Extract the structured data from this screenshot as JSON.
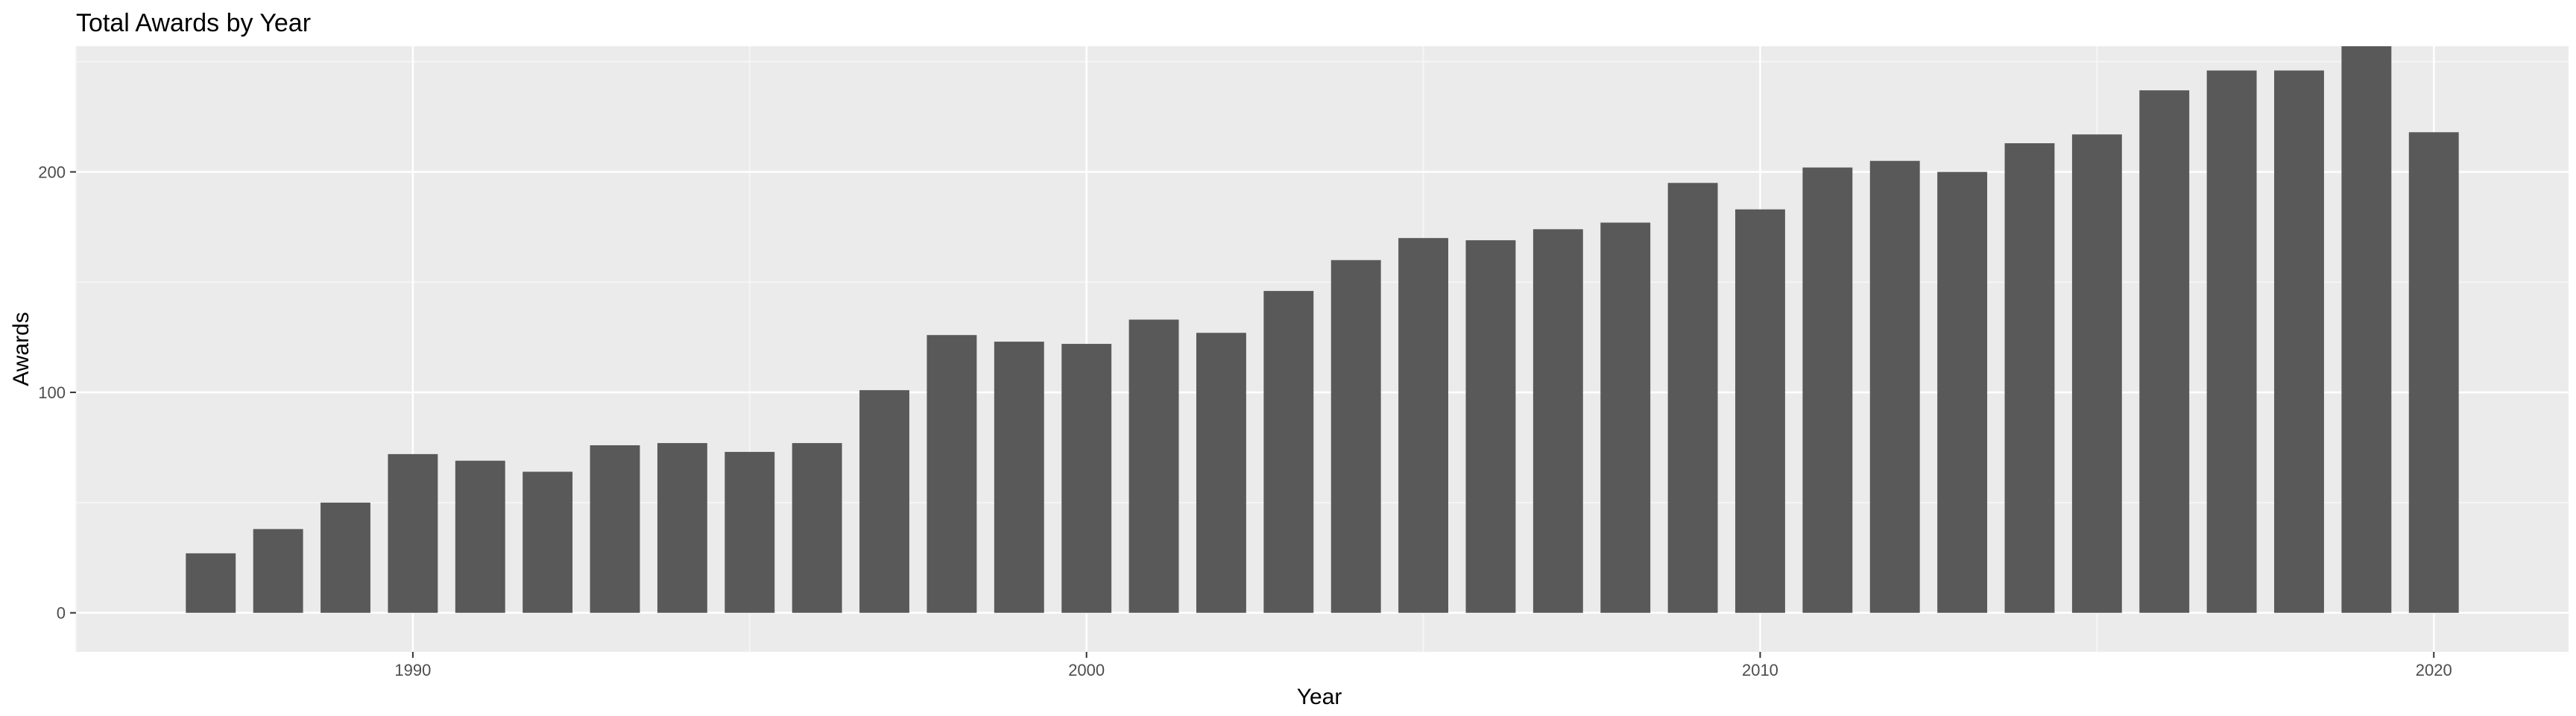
{
  "chart_data": {
    "type": "bar",
    "title": "Total Awards by Year",
    "xlabel": "Year",
    "ylabel": "Awards",
    "categories": [
      1987,
      1988,
      1989,
      1990,
      1991,
      1992,
      1993,
      1994,
      1995,
      1996,
      1997,
      1998,
      1999,
      2000,
      2001,
      2002,
      2003,
      2004,
      2005,
      2006,
      2007,
      2008,
      2009,
      2010,
      2011,
      2012,
      2013,
      2014,
      2015,
      2016,
      2017,
      2018,
      2019,
      2020
    ],
    "values": [
      27,
      38,
      50,
      72,
      69,
      64,
      76,
      77,
      73,
      77,
      101,
      126,
      123,
      122,
      133,
      127,
      146,
      160,
      170,
      169,
      174,
      177,
      195,
      183,
      202,
      205,
      200,
      213,
      217,
      237,
      246,
      246,
      257,
      218
    ],
    "xlim": [
      1985,
      2022
    ],
    "ylim": [
      -17.7,
      257
    ],
    "x_ticks": [
      1990,
      2000,
      2010,
      2020
    ],
    "y_ticks": [
      0,
      100,
      200
    ],
    "grid": true,
    "legend": "none",
    "colors": {
      "bar": "#595959",
      "panel": "#ebebeb",
      "grid_major": "#ffffff",
      "grid_minor": "#f5f5f5",
      "tick": "#333333"
    }
  }
}
